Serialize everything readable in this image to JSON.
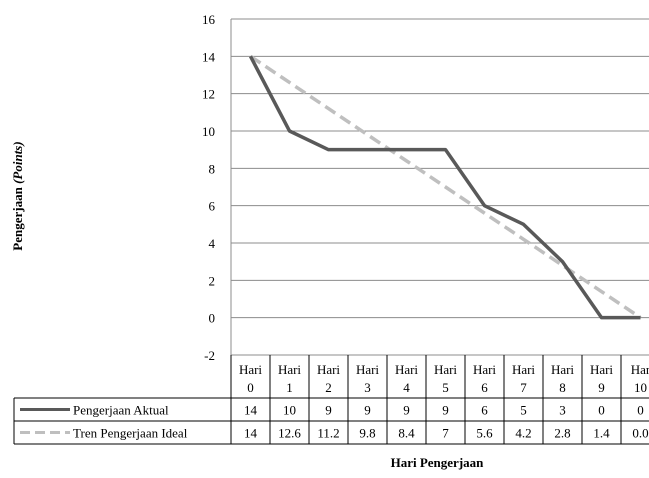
{
  "chart_data": {
    "type": "line",
    "title": "",
    "xlabel": "Hari Pengerjaan",
    "ylabel_main": "Pengerjaan ",
    "ylabel_italic": "(Points)",
    "ylim": [
      -2,
      16
    ],
    "yticks": [
      "16",
      "14",
      "12",
      "10",
      "8",
      "6",
      "4",
      "2",
      "0",
      "-2"
    ],
    "grid": true,
    "legend": "data-table",
    "categories_line1": [
      "Hari",
      "Hari",
      "Hari",
      "Hari",
      "Hari",
      "Hari",
      "Hari",
      "Hari",
      "Hari",
      "Hari",
      "Har"
    ],
    "categories_line2": [
      "0",
      "1",
      "2",
      "3",
      "4",
      "5",
      "6",
      "7",
      "8",
      "9",
      "10"
    ],
    "series": [
      {
        "name": "Pengerjaan Aktual",
        "values": [
          14,
          10,
          9,
          9,
          9,
          9,
          6,
          5,
          3,
          0,
          0
        ],
        "table_values": [
          "14",
          "10",
          "9",
          "9",
          "9",
          "9",
          "6",
          "5",
          "3",
          "0",
          "0"
        ],
        "color": "#595959",
        "dashed": false
      },
      {
        "name": "Tren Pengerjaan Ideal",
        "values": [
          14,
          12.6,
          11.2,
          9.8,
          8.4,
          7,
          5.6,
          4.2,
          2.8,
          1.4,
          0
        ],
        "table_values": [
          "14",
          "12.6",
          "11.2",
          "9.8",
          "8.4",
          "7",
          "5.6",
          "4.2",
          "2.8",
          "1.4",
          "0.0"
        ],
        "color": "#bfbfbf",
        "dashed": true
      }
    ]
  }
}
